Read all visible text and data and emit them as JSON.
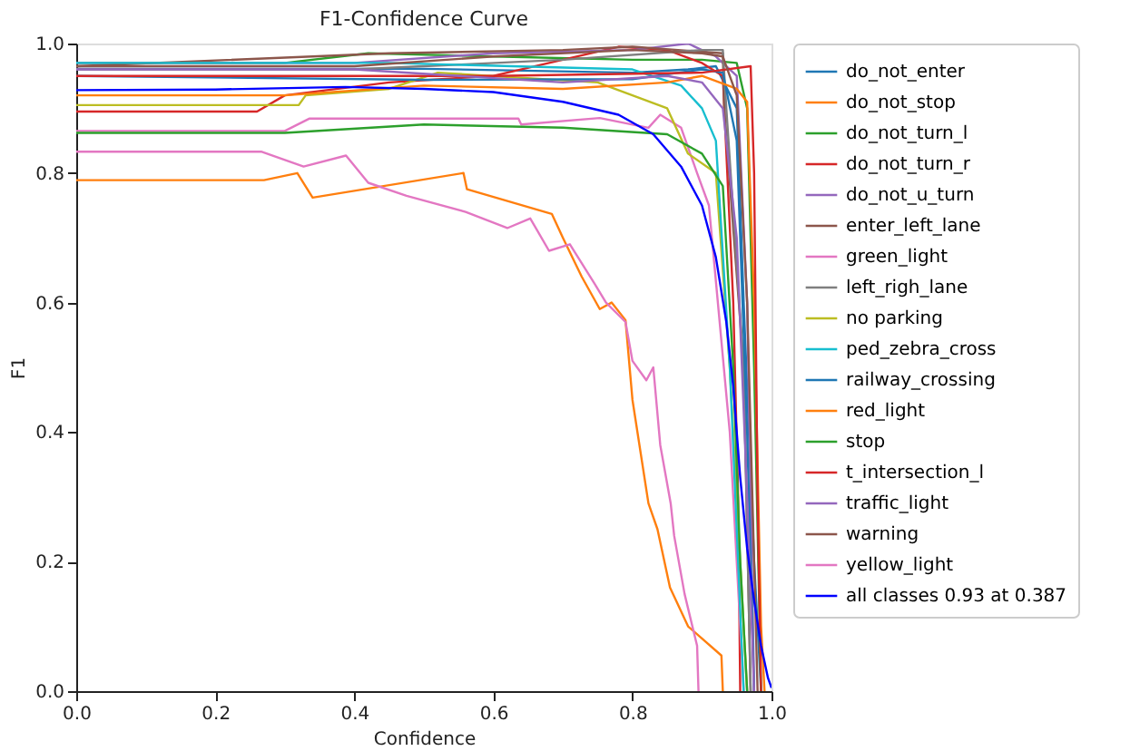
{
  "chart_data": {
    "type": "line",
    "title": "F1-Confidence Curve",
    "xlabel": "Confidence",
    "ylabel": "F1",
    "xlim": [
      0,
      1
    ],
    "ylim": [
      0,
      1
    ],
    "xticks": [
      {
        "value": 0,
        "label": "0.0"
      },
      0.2,
      0.4,
      0.6,
      0.8,
      {
        "value": 1,
        "label": "1.0"
      }
    ],
    "yticks": [
      {
        "value": 0,
        "label": "0.0"
      },
      0.2,
      0.4,
      0.6,
      0.8,
      {
        "value": 1,
        "label": "1.0"
      }
    ],
    "grid": false,
    "legend": "right",
    "marker": "none",
    "line_style": "solid",
    "series": [
      {
        "name": "do_not_enter",
        "color": "#1f77b4",
        "x": [
          0,
          0.5,
          0.8,
          0.88,
          0.92,
          0.95,
          0.96,
          0.975,
          0.985
        ],
        "values": [
          0.961,
          0.961,
          0.955,
          0.96,
          0.965,
          0.9,
          0.6,
          0.2,
          0
        ]
      },
      {
        "name": "do_not_stop",
        "color": "#ff7f0e",
        "x": [
          0,
          0.27,
          0.318,
          0.34,
          0.557,
          0.562,
          0.684,
          0.7,
          0.727,
          0.753,
          0.77,
          0.79,
          0.8,
          0.823,
          0.836,
          0.854,
          0.88,
          0.928,
          0.93
        ],
        "values": [
          0.789,
          0.789,
          0.8,
          0.762,
          0.8,
          0.775,
          0.737,
          0.7,
          0.64,
          0.59,
          0.6,
          0.573,
          0.45,
          0.29,
          0.25,
          0.16,
          0.1,
          0.055,
          0
        ]
      },
      {
        "name": "do_not_turn_l",
        "color": "#2ca02c",
        "x": [
          0,
          0.3,
          0.42,
          0.6,
          0.8,
          0.9,
          0.95,
          0.965,
          0.975,
          0.985
        ],
        "values": [
          0.97,
          0.97,
          0.985,
          0.98,
          0.975,
          0.975,
          0.97,
          0.9,
          0.5,
          0
        ]
      },
      {
        "name": "do_not_turn_r",
        "color": "#d62728",
        "x": [
          0,
          0.26,
          0.3,
          0.45,
          0.6,
          0.78,
          0.85,
          0.9,
          0.93,
          0.945,
          0.952,
          0.955
        ],
        "values": [
          0.895,
          0.895,
          0.92,
          0.94,
          0.95,
          0.995,
          0.99,
          0.97,
          0.95,
          0.6,
          0.3,
          0
        ]
      },
      {
        "name": "do_not_u_turn",
        "color": "#9467bd",
        "x": [
          0,
          0.4,
          0.6,
          0.8,
          0.88,
          0.92,
          0.95,
          0.965,
          0.975
        ],
        "values": [
          0.97,
          0.97,
          0.985,
          0.99,
          1.0,
          0.98,
          0.95,
          0.6,
          0
        ]
      },
      {
        "name": "enter_left_lane",
        "color": "#8c564b",
        "x": [
          0,
          0.45,
          0.7,
          0.8,
          0.93,
          0.932,
          0.96,
          0.97
        ],
        "values": [
          0.965,
          0.985,
          0.99,
          0.995,
          0.985,
          0.9,
          0.5,
          0
        ]
      },
      {
        "name": "green_light",
        "color": "#e377c2",
        "x": [
          0,
          0.3,
          0.335,
          0.636,
          0.64,
          0.753,
          0.823,
          0.84,
          0.87,
          0.893,
          0.91,
          0.94,
          0.96
        ],
        "values": [
          0.865,
          0.865,
          0.884,
          0.884,
          0.875,
          0.885,
          0.87,
          0.89,
          0.87,
          0.8,
          0.75,
          0.4,
          0
        ]
      },
      {
        "name": "left_righ_lane",
        "color": "#7f7f7f",
        "x": [
          0,
          0.4,
          0.7,
          0.9,
          0.93,
          0.935,
          0.96,
          0.97
        ],
        "values": [
          0.96,
          0.96,
          0.975,
          0.99,
          0.99,
          0.9,
          0.5,
          0
        ]
      },
      {
        "name": "no parking",
        "color": "#bcbd22",
        "x": [
          0,
          0.32,
          0.33,
          0.45,
          0.52,
          0.75,
          0.85,
          0.88,
          0.92,
          0.94,
          0.965
        ],
        "values": [
          0.905,
          0.905,
          0.92,
          0.93,
          0.955,
          0.94,
          0.9,
          0.83,
          0.8,
          0.5,
          0
        ]
      },
      {
        "name": "ped_zebra_cross",
        "color": "#17becf",
        "x": [
          0,
          0.45,
          0.8,
          0.87,
          0.9,
          0.92,
          0.94,
          0.96
        ],
        "values": [
          0.97,
          0.97,
          0.96,
          0.935,
          0.9,
          0.85,
          0.5,
          0
        ]
      },
      {
        "name": "railway_crossing",
        "color": "#1f77b4",
        "x": [
          0,
          0.5,
          0.8,
          0.9,
          0.93,
          0.95,
          0.965,
          0.975
        ],
        "values": [
          0.95,
          0.944,
          0.945,
          0.96,
          0.955,
          0.85,
          0.4,
          0
        ]
      },
      {
        "name": "red_light",
        "color": "#ff7f0e",
        "x": [
          0,
          0.3,
          0.5,
          0.7,
          0.85,
          0.9,
          0.95,
          0.965,
          0.975,
          0.985,
          0.99
        ],
        "values": [
          0.92,
          0.92,
          0.935,
          0.93,
          0.94,
          0.95,
          0.93,
          0.91,
          0.6,
          0.1,
          0
        ]
      },
      {
        "name": "stop",
        "color": "#2ca02c",
        "x": [
          0,
          0.3,
          0.5,
          0.7,
          0.85,
          0.9,
          0.93,
          0.945,
          0.955,
          0.965
        ],
        "values": [
          0.862,
          0.862,
          0.875,
          0.87,
          0.86,
          0.83,
          0.78,
          0.5,
          0.2,
          0
        ]
      },
      {
        "name": "t_intersection_l",
        "color": "#d62728",
        "x": [
          0,
          0.3,
          0.6,
          0.9,
          0.97,
          0.975,
          0.98,
          0.985
        ],
        "values": [
          0.95,
          0.95,
          0.95,
          0.955,
          0.965,
          0.8,
          0.3,
          0
        ]
      },
      {
        "name": "traffic_light",
        "color": "#9467bd",
        "x": [
          0,
          0.4,
          0.7,
          0.85,
          0.9,
          0.93,
          0.95,
          0.965,
          0.975
        ],
        "values": [
          0.96,
          0.96,
          0.94,
          0.95,
          0.94,
          0.9,
          0.7,
          0.3,
          0
        ]
      },
      {
        "name": "warning",
        "color": "#8c564b",
        "x": [
          0,
          0.4,
          0.6,
          0.8,
          0.9,
          0.93,
          0.95,
          0.965,
          0.98
        ],
        "values": [
          0.965,
          0.965,
          0.98,
          0.99,
          0.985,
          0.98,
          0.92,
          0.6,
          0
        ]
      },
      {
        "name": "yellow_light",
        "color": "#e377c2",
        "x": [
          0,
          0.266,
          0.327,
          0.388,
          0.42,
          0.475,
          0.56,
          0.62,
          0.653,
          0.68,
          0.71,
          0.745,
          0.762,
          0.79,
          0.8,
          0.82,
          0.83,
          0.84,
          0.855,
          0.86,
          0.875,
          0.893,
          0.895
        ],
        "values": [
          0.833,
          0.833,
          0.81,
          0.827,
          0.785,
          0.765,
          0.74,
          0.715,
          0.73,
          0.68,
          0.69,
          0.63,
          0.6,
          0.57,
          0.51,
          0.48,
          0.5,
          0.38,
          0.29,
          0.24,
          0.15,
          0.07,
          0
        ]
      },
      {
        "name": "all classes 0.93 at 0.387",
        "color": "#0000ff",
        "x": [
          0,
          0.2,
          0.387,
          0.5,
          0.6,
          0.7,
          0.78,
          0.83,
          0.87,
          0.9,
          0.92,
          0.935,
          0.945,
          0.955,
          0.965,
          0.975,
          0.985,
          0.995,
          1.0
        ],
        "values": [
          0.928,
          0.929,
          0.933,
          0.93,
          0.925,
          0.91,
          0.89,
          0.86,
          0.81,
          0.75,
          0.67,
          0.57,
          0.47,
          0.33,
          0.22,
          0.14,
          0.07,
          0.02,
          0.005
        ]
      }
    ]
  }
}
